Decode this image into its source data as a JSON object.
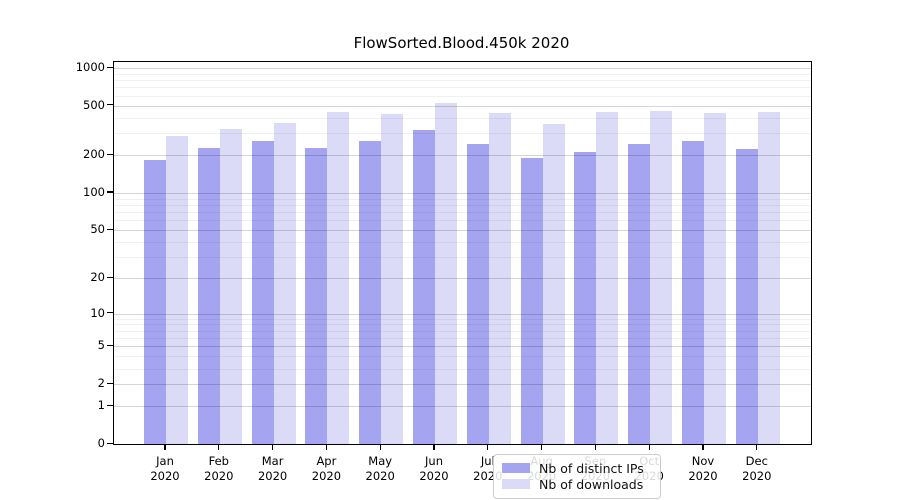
{
  "chart_data": {
    "type": "bar",
    "title": "FlowSorted.Blood.450k 2020",
    "categories": [
      "Jan",
      "Feb",
      "Mar",
      "Apr",
      "May",
      "Jun",
      "Jul",
      "Aug",
      "Sep",
      "Oct",
      "Nov",
      "Dec"
    ],
    "year_label": "2020",
    "series": [
      {
        "name": "Nb of distinct IPs",
        "color": "#a4a4f1",
        "values": [
          184,
          228,
          261,
          231,
          261,
          320,
          249,
          190,
          212,
          249,
          261,
          226
        ]
      },
      {
        "name": "Nb of downloads",
        "color": "#dbdbf8",
        "values": [
          286,
          326,
          364,
          443,
          432,
          528,
          441,
          355,
          448,
          455,
          437,
          443
        ]
      }
    ],
    "y_axis": {
      "scale": "log1p",
      "ylim": [
        0,
        1120
      ],
      "tick_values": [
        0,
        1,
        2,
        5,
        10,
        20,
        50,
        100,
        200,
        500,
        1000
      ],
      "tick_labels": [
        "0",
        "1",
        "2",
        "5",
        "10",
        "20",
        "50",
        "100",
        "200",
        "500",
        "1000"
      ],
      "minor_gridline_values": [
        3,
        4,
        6,
        7,
        8,
        9,
        30,
        40,
        60,
        70,
        80,
        90,
        300,
        400,
        600,
        700,
        800,
        900
      ]
    },
    "xlabel": "",
    "ylabel": "",
    "grid": true,
    "legend": {
      "position": "bottom-center",
      "entries": [
        "Nb of distinct IPs",
        "Nb of downloads"
      ]
    }
  },
  "colors": {
    "background": "#ffffff",
    "bar_distinct_ips": "#a4a4f1",
    "bar_downloads": "#dbdbf8",
    "axis": "#000000",
    "major_grid": "#d6d6d6",
    "minor_grid": "#f1f1f1"
  }
}
